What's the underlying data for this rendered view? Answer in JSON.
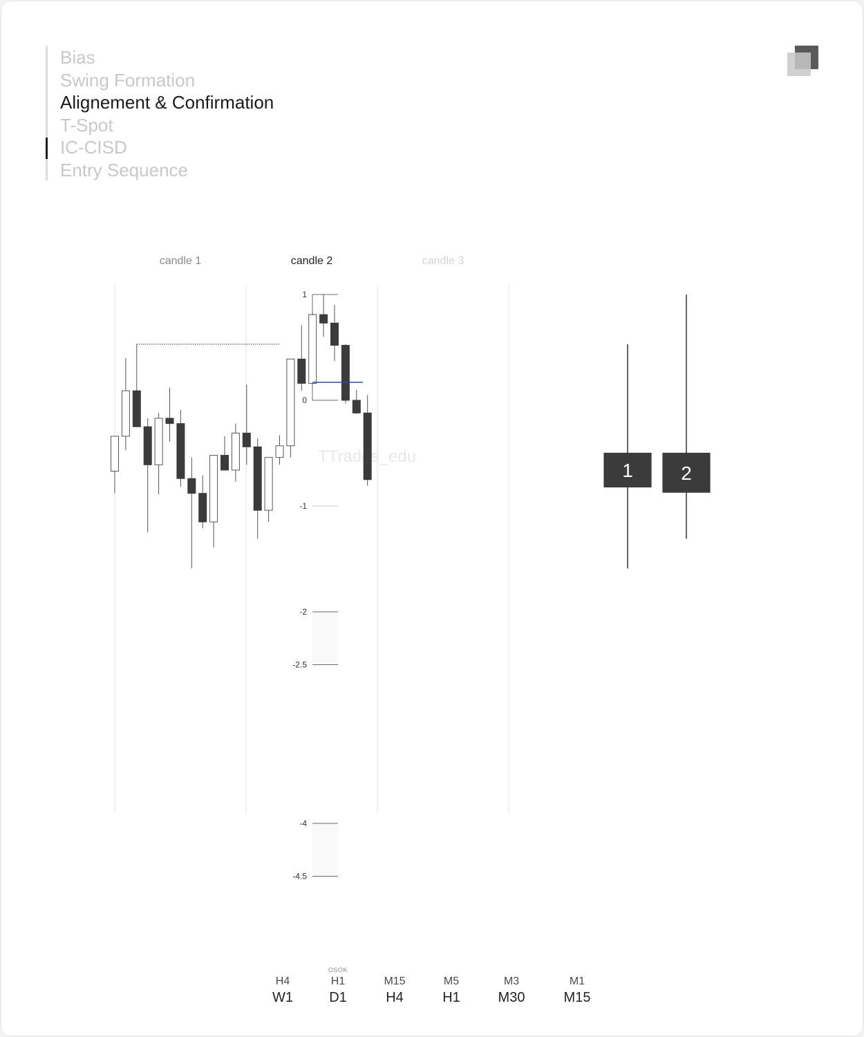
{
  "nav": {
    "items": [
      {
        "label": "Bias",
        "active": false
      },
      {
        "label": "Swing Formation",
        "active": false
      },
      {
        "label": "Alignement & Confirmation",
        "active": true
      },
      {
        "label": "T-Spot",
        "active": false
      },
      {
        "label": "IC-CISD",
        "active": false
      },
      {
        "label": "Entry Sequence",
        "active": false
      }
    ]
  },
  "logo": {
    "icon": "stacked-squares-icon"
  },
  "colors": {
    "bull": "#ffffff",
    "bear": "#3b3b3b",
    "grid": "#e6e6e6",
    "equilibrium": "#2b4e9e",
    "active_text": "#1a1a1a",
    "inactive_text": "#c8c8c8"
  },
  "chart_data": {
    "type": "candlestick",
    "columns": [
      {
        "label": "candle 1",
        "state": "past"
      },
      {
        "label": "candle 2",
        "state": "active"
      },
      {
        "label": "candle 3",
        "state": "future"
      }
    ],
    "watermark": "TTrades_edu",
    "candles": [
      {
        "o": -0.67,
        "h": -0.34,
        "l": -0.88,
        "c": -0.34
      },
      {
        "o": -0.34,
        "h": 0.4,
        "l": -0.47,
        "c": 0.09
      },
      {
        "o": 0.09,
        "h": 0.53,
        "l": -0.24,
        "c": -0.25
      },
      {
        "o": -0.25,
        "h": -0.17,
        "l": -1.25,
        "c": -0.61
      },
      {
        "o": -0.61,
        "h": -0.12,
        "l": -0.89,
        "c": -0.17
      },
      {
        "o": -0.17,
        "h": 0.12,
        "l": -0.39,
        "c": -0.22
      },
      {
        "o": -0.22,
        "h": -0.09,
        "l": -0.82,
        "c": -0.74
      },
      {
        "o": -0.74,
        "h": -0.54,
        "l": -1.59,
        "c": -0.88
      },
      {
        "o": -0.88,
        "h": -0.71,
        "l": -1.21,
        "c": -1.15
      },
      {
        "o": -1.15,
        "h": -0.54,
        "l": -1.39,
        "c": -0.52
      },
      {
        "o": -0.52,
        "h": -0.34,
        "l": -0.66,
        "c": -0.66
      },
      {
        "o": -0.66,
        "h": -0.22,
        "l": -0.77,
        "c": -0.31
      },
      {
        "o": -0.31,
        "h": 0.15,
        "l": -0.61,
        "c": -0.44
      },
      {
        "o": -0.44,
        "h": -0.36,
        "l": -1.31,
        "c": -1.04
      },
      {
        "o": -1.04,
        "h": -0.55,
        "l": -1.15,
        "c": -0.54
      },
      {
        "o": -0.54,
        "h": -0.33,
        "l": -0.61,
        "c": -0.43
      },
      {
        "o": -0.43,
        "h": 0.38,
        "l": -0.54,
        "c": 0.39
      },
      {
        "o": 0.39,
        "h": 0.71,
        "l": 0.09,
        "c": 0.16
      },
      {
        "o": 0.16,
        "h": 0.83,
        "l": 0.15,
        "c": 0.81
      },
      {
        "o": 0.81,
        "h": 1.0,
        "l": 0.6,
        "c": 0.73
      },
      {
        "o": 0.73,
        "h": 0.9,
        "l": 0.37,
        "c": 0.52
      },
      {
        "o": 0.52,
        "h": 0.53,
        "l": -0.03,
        "c": 0.0
      },
      {
        "o": 0.0,
        "h": 0.1,
        "l": -0.13,
        "c": -0.12
      },
      {
        "o": -0.12,
        "h": 0.05,
        "l": -0.81,
        "c": -0.75
      }
    ],
    "fib_levels": [
      {
        "level": 1,
        "label": "1"
      },
      {
        "level": 0,
        "label": "0"
      },
      {
        "level": -1,
        "label": "-1"
      },
      {
        "level": -2,
        "label": "-2"
      },
      {
        "level": -2.5,
        "label": "-2.5"
      },
      {
        "level": -4,
        "label": "-4"
      },
      {
        "level": -4.5,
        "label": "-4.5"
      }
    ],
    "equilibrium": 0.17,
    "swing_high_line": 0.53,
    "htf_candles": [
      {
        "label": "1",
        "o": -0.5,
        "h": 0.53,
        "l": -1.59,
        "c": -0.82
      },
      {
        "label": "2",
        "o": -0.5,
        "h": 1.0,
        "l": -1.31,
        "c": -0.87
      }
    ]
  },
  "timeframes": [
    {
      "low": "H4",
      "high": "W1",
      "note": ""
    },
    {
      "low": "H1",
      "high": "D1",
      "note": "OSOK"
    },
    {
      "low": "M15",
      "high": "H4",
      "note": ""
    },
    {
      "low": "M5",
      "high": "H1",
      "note": ""
    },
    {
      "low": "M3",
      "high": "M30",
      "note": ""
    },
    {
      "low": "M1",
      "high": "M15",
      "note": ""
    }
  ]
}
